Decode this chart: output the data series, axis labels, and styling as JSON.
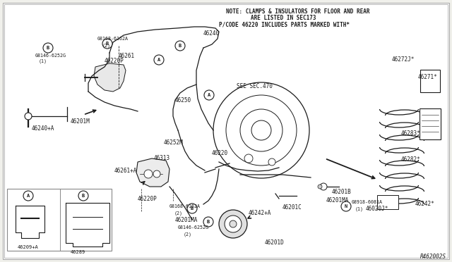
{
  "bg_color": "#f0f0eb",
  "border_color": "#999999",
  "line_color": "#1a1a1a",
  "note_line1": "NOTE: CLAMPS & INSULATORS FOR FLOOR AND REAR",
  "note_line2": "ARE LISTED IN SEC173",
  "note_line3": "P/CODE 46220 INCLUDES PARTS MARKED WITH*",
  "ref_code": "R462002S",
  "fig_width": 6.4,
  "fig_height": 3.72,
  "dpi": 100
}
